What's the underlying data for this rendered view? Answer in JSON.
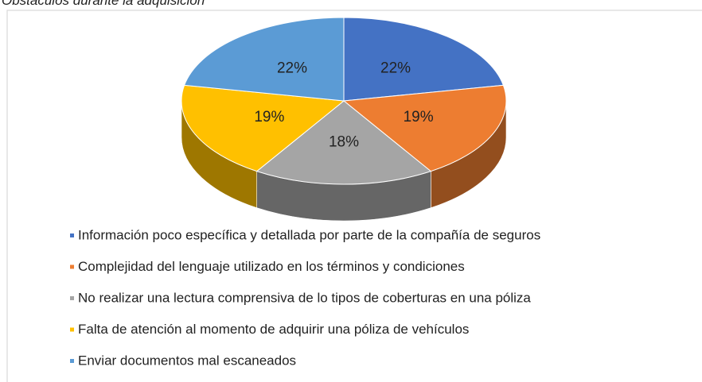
{
  "chart_data": {
    "type": "pie",
    "title": "Obstáculos durante la adquisición",
    "categories": [
      "Información poco específica y detallada por parte de la compañía de seguros",
      "Complejidad del lenguaje utilizado en los términos y condiciones",
      "No realizar una lectura comprensiva de lo tipos de coberturas en una póliza",
      "Falta de atención al momento de adquirir una póliza de vehículos",
      "Enviar documentos mal escaneados"
    ],
    "values": [
      22,
      19,
      18,
      19,
      22
    ],
    "value_labels": [
      "22%",
      "19%",
      "18%",
      "19%",
      "22%"
    ],
    "colors": [
      "#4472c4",
      "#ed7d31",
      "#a5a5a5",
      "#ffc000",
      "#5b9bd5"
    ],
    "legend": "bottom"
  }
}
